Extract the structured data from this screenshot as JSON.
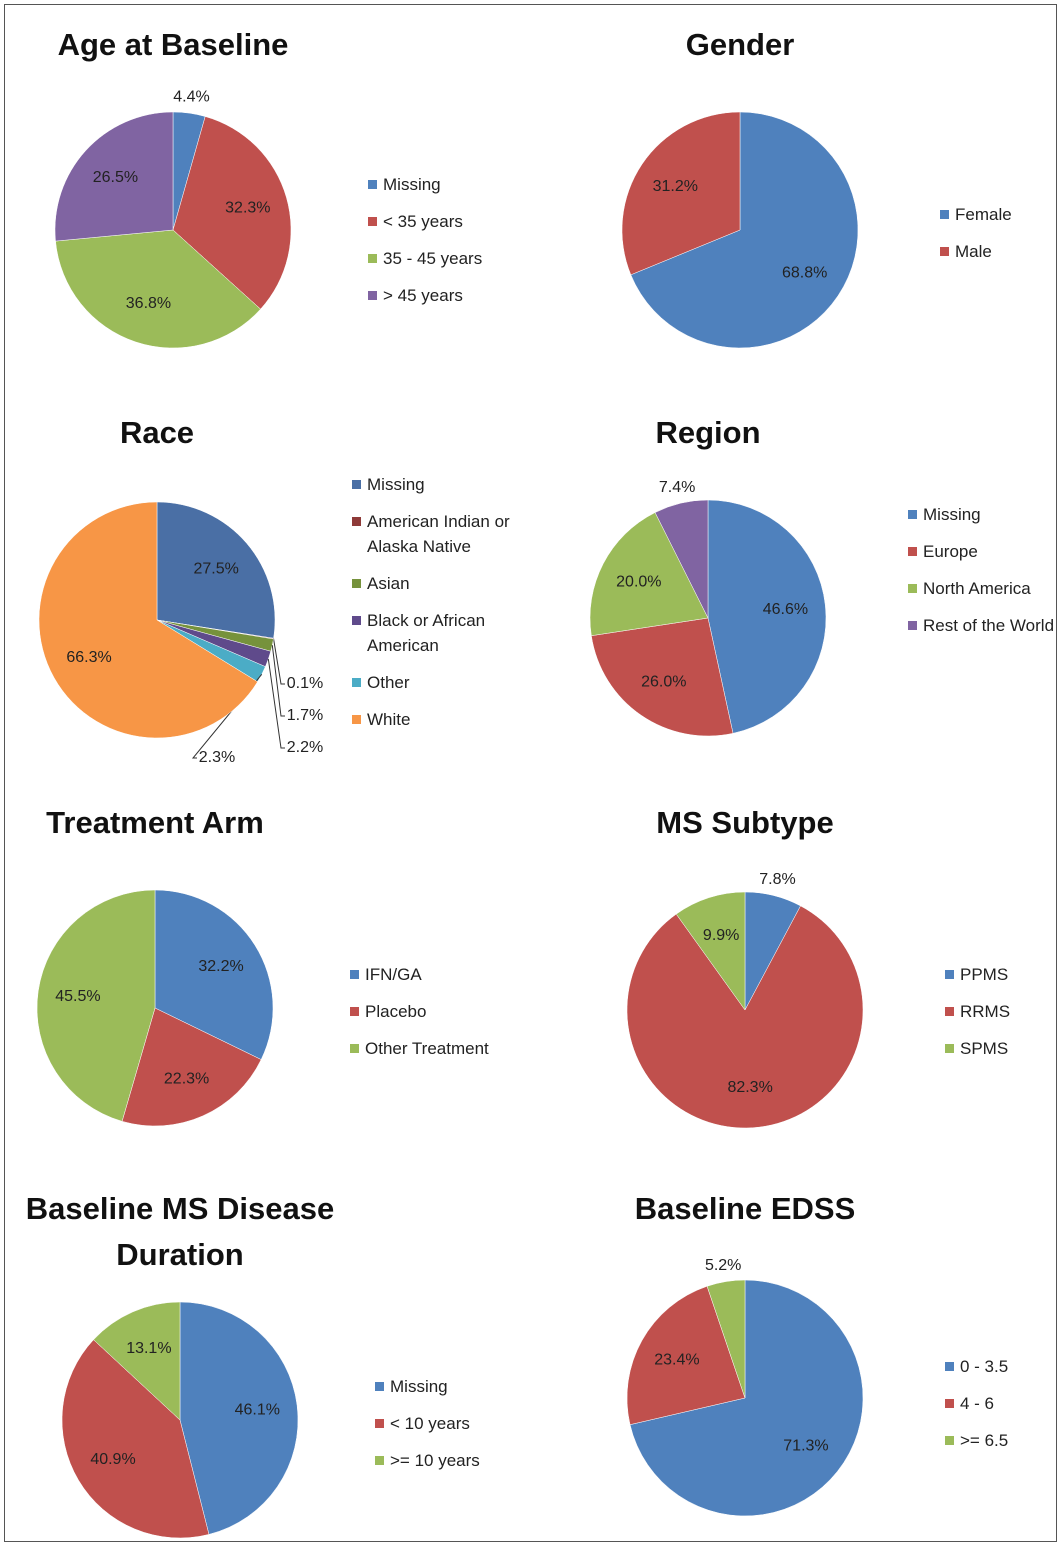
{
  "chart_data": [
    {
      "type": "pie",
      "title": "Age at Baseline",
      "categories": [
        "Missing",
        "< 35 years",
        "35 - 45 years",
        "> 45 years"
      ],
      "values": [
        4.4,
        32.3,
        36.8,
        26.5
      ],
      "value_labels": [
        "4.4%",
        "32.3%",
        "36.8%",
        "26.5%"
      ],
      "colors": [
        "#4f81bd",
        "#c0504d",
        "#9bbb59",
        "#8064a2"
      ]
    },
    {
      "type": "pie",
      "title": "Gender",
      "categories": [
        "Female",
        "Male"
      ],
      "values": [
        68.8,
        31.2
      ],
      "value_labels": [
        "68.8%",
        "31.2%"
      ],
      "colors": [
        "#4f81bd",
        "#c0504d"
      ]
    },
    {
      "type": "pie",
      "title": "Race",
      "categories": [
        "Missing",
        "American Indian or Alaska Native",
        "Asian",
        "Black or African American",
        "Other",
        "White"
      ],
      "values": [
        27.5,
        0.1,
        1.7,
        2.2,
        2.3,
        66.3
      ],
      "value_labels": [
        "27.5%",
        "0.1%",
        "1.7%",
        "2.2%",
        "2.3%",
        "66.3%"
      ],
      "colors": [
        "#4a6fa5",
        "#8e3a38",
        "#76923c",
        "#5f4a8b",
        "#4bacc6",
        "#f79646"
      ]
    },
    {
      "type": "pie",
      "title": "Region",
      "categories": [
        "Missing",
        "Europe",
        "North America",
        "Rest of the World"
      ],
      "values": [
        46.6,
        26.0,
        20.0,
        7.4
      ],
      "value_labels": [
        "46.6%",
        "26.0%",
        "20.0%",
        "7.4%"
      ],
      "colors": [
        "#4f81bd",
        "#c0504d",
        "#9bbb59",
        "#8064a2"
      ]
    },
    {
      "type": "pie",
      "title": "Treatment Arm",
      "categories": [
        "IFN/GA",
        "Placebo",
        "Other Treatment"
      ],
      "values": [
        32.2,
        22.3,
        45.5
      ],
      "value_labels": [
        "32.2%",
        "22.3%",
        "45.5%"
      ],
      "colors": [
        "#4f81bd",
        "#c0504d",
        "#9bbb59"
      ]
    },
    {
      "type": "pie",
      "title": "MS Subtype",
      "categories": [
        "PPMS",
        "RRMS",
        "SPMS"
      ],
      "values": [
        7.8,
        82.3,
        9.9
      ],
      "value_labels": [
        "7.8%",
        "82.3%",
        "9.9%"
      ],
      "colors": [
        "#4f81bd",
        "#c0504d",
        "#9bbb59"
      ]
    },
    {
      "type": "pie",
      "title": "Baseline MS Disease Duration",
      "categories": [
        "Missing",
        "< 10 years",
        ">= 10 years"
      ],
      "values": [
        46.1,
        40.9,
        13.1
      ],
      "value_labels": [
        "46.1%",
        "40.9%",
        "13.1%"
      ],
      "colors": [
        "#4f81bd",
        "#c0504d",
        "#9bbb59"
      ]
    },
    {
      "type": "pie",
      "title": "Baseline EDSS",
      "categories": [
        "0 - 3.5",
        "4 - 6",
        ">= 6.5"
      ],
      "values": [
        71.3,
        23.4,
        5.2
      ],
      "value_labels": [
        "71.3%",
        "23.4%",
        "5.2%"
      ],
      "colors": [
        "#4f81bd",
        "#c0504d",
        "#9bbb59"
      ]
    }
  ]
}
